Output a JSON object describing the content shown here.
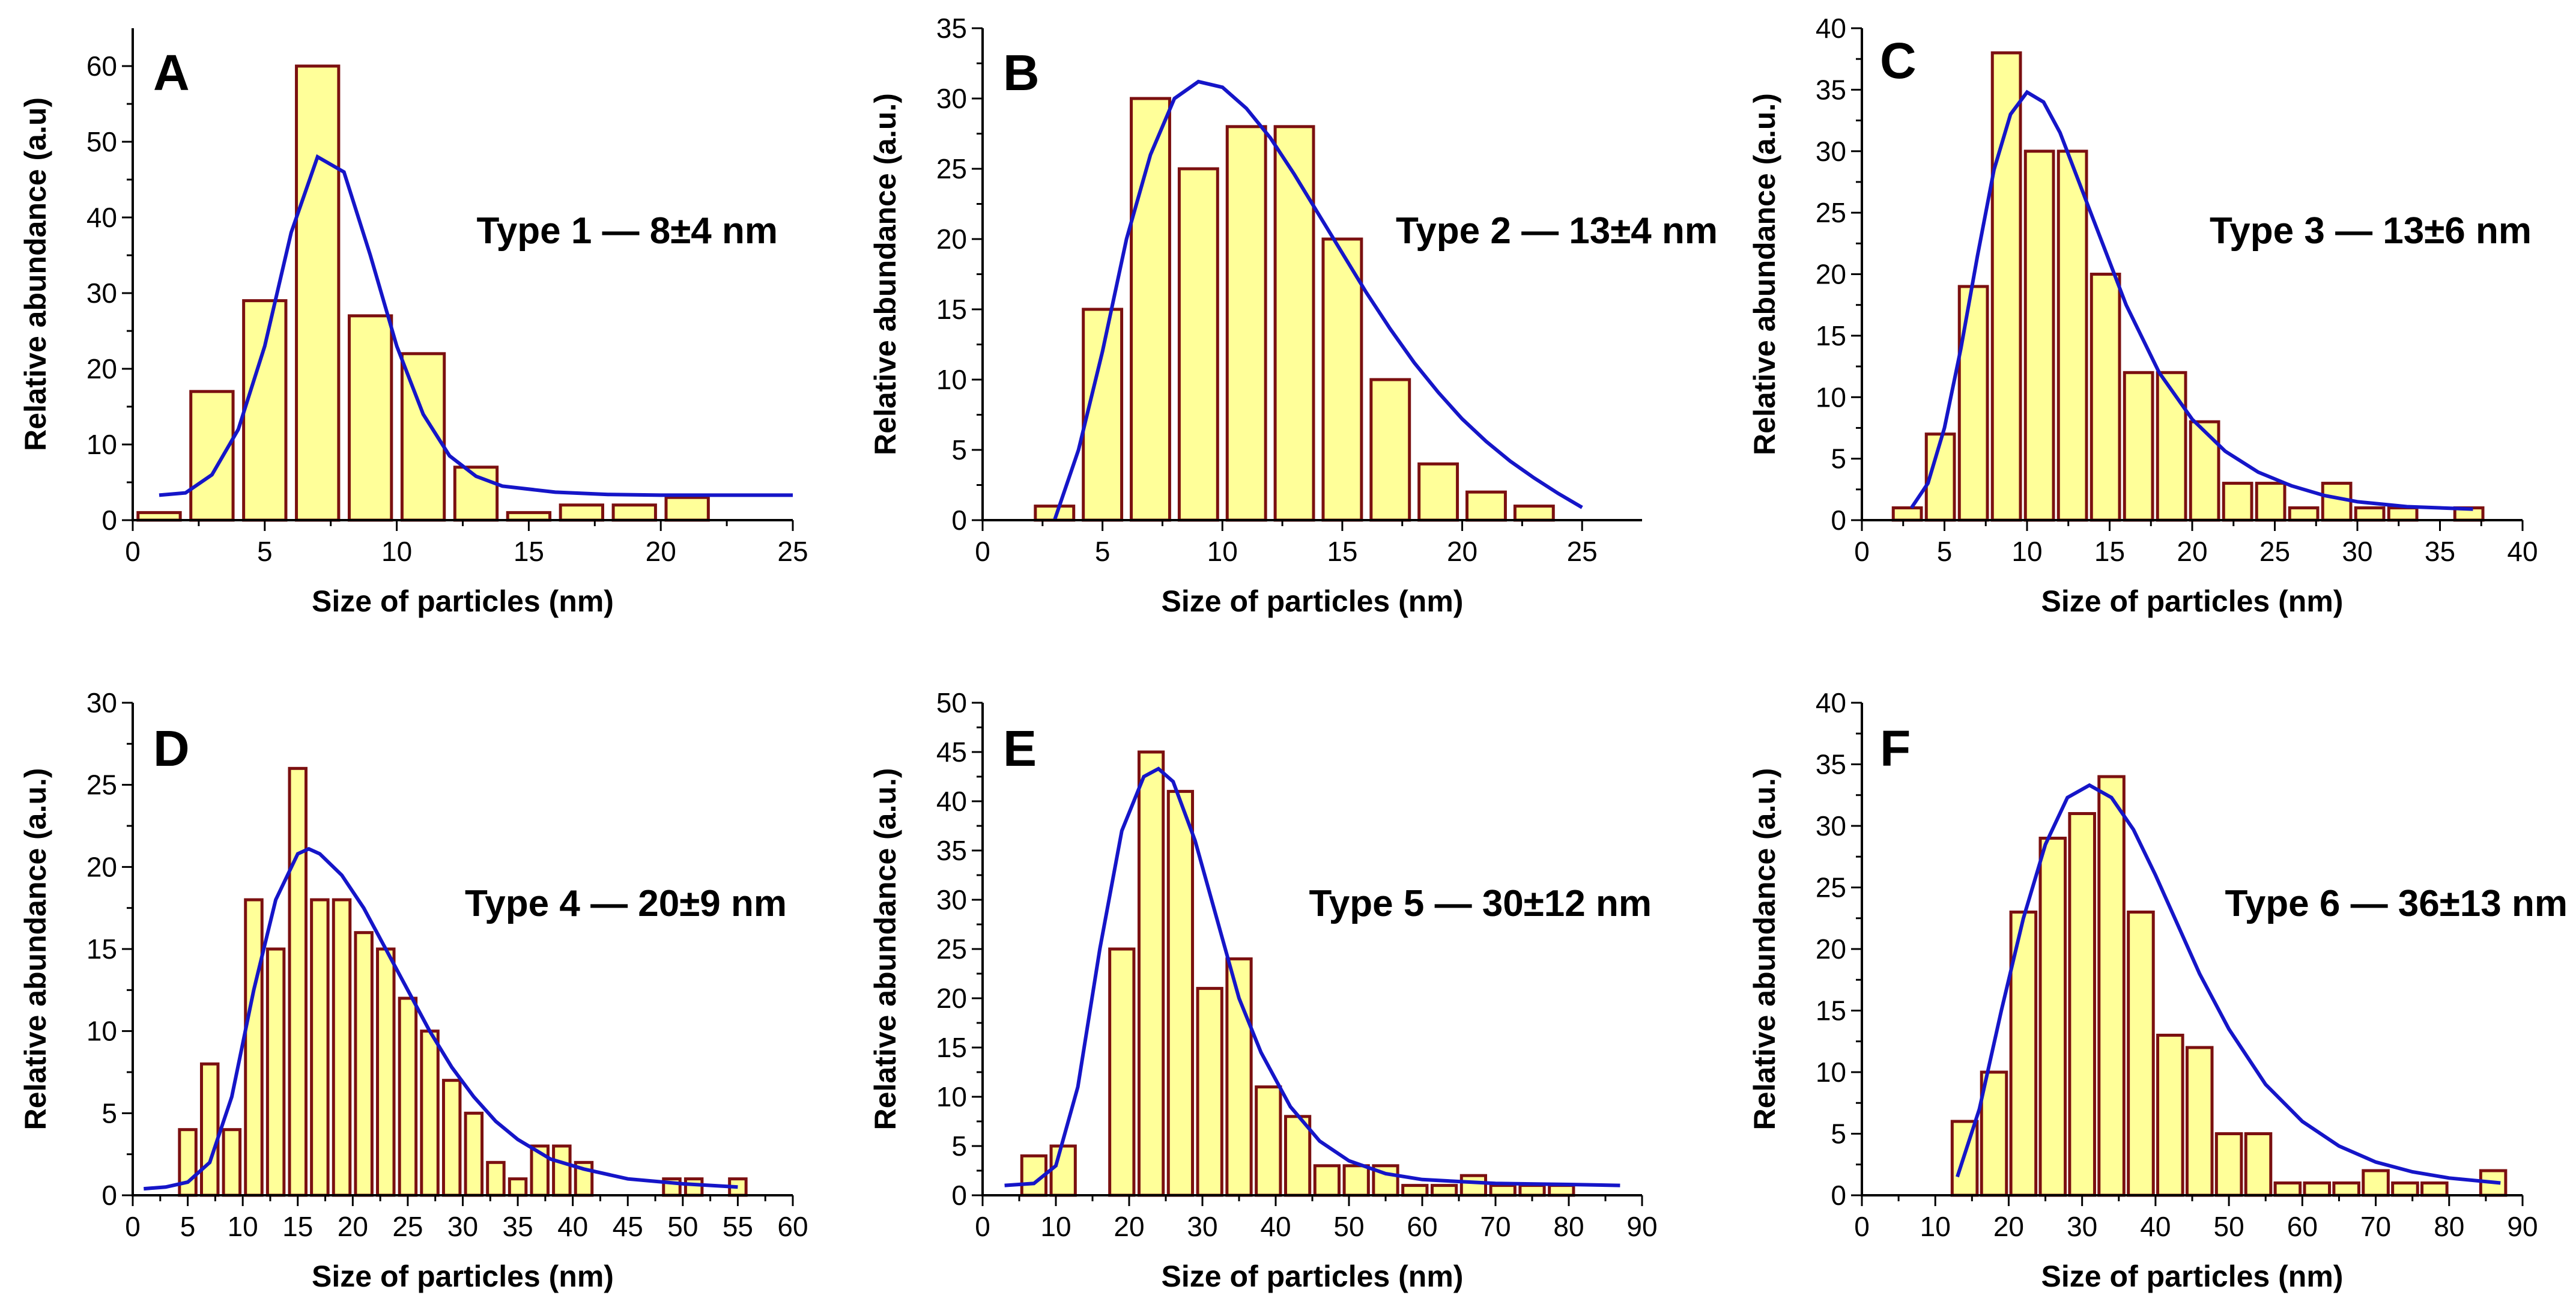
{
  "colors": {
    "bar_fill": "#FFFF99",
    "bar_stroke": "#7B1010",
    "fit_line": "#1515C8",
    "axis": "#000000"
  },
  "chart_data": [
    {
      "panel": "A",
      "type": "bar",
      "annotation": "Type 1 — 8±4 nm",
      "xlabel": "Size of particles (nm)",
      "ylabel": "Relative abundance (a.u)",
      "xlim": [
        0,
        25
      ],
      "ylim": [
        0,
        65
      ],
      "xticks": [
        0,
        5,
        10,
        15,
        20,
        25
      ],
      "yticks": [
        0,
        10,
        20,
        30,
        40,
        50,
        60
      ],
      "bin_width": 1.6,
      "x": [
        1,
        3,
        5,
        7,
        9,
        11,
        13,
        15,
        17,
        19,
        21
      ],
      "values": [
        1,
        17,
        29,
        60,
        27,
        22,
        7,
        1,
        2,
        2,
        3
      ],
      "fit": {
        "name": "fit",
        "x": [
          1,
          2,
          3,
          4,
          5,
          6,
          7,
          8,
          9,
          10,
          11,
          12,
          13,
          14,
          16,
          18,
          20,
          22,
          25
        ],
        "y": [
          3.3,
          3.6,
          6,
          12,
          23,
          38,
          48,
          46,
          35,
          23,
          14,
          8.5,
          5.8,
          4.5,
          3.7,
          3.4,
          3.3,
          3.3,
          3.3
        ]
      }
    },
    {
      "panel": "B",
      "type": "bar",
      "annotation": "Type 2 — 13±4 nm",
      "xlabel": "Size of particles (nm)",
      "ylabel": "Relative abundance (a.u.)",
      "xlim": [
        0,
        27.5
      ],
      "ylim": [
        0,
        35
      ],
      "xticks": [
        0,
        5,
        10,
        15,
        20,
        25
      ],
      "yticks": [
        0,
        5,
        10,
        15,
        20,
        25,
        30,
        35
      ],
      "bin_width": 1.6,
      "x": [
        3,
        5,
        7,
        9,
        11,
        13,
        15,
        17,
        19,
        21,
        23
      ],
      "values": [
        1,
        15,
        30,
        25,
        28,
        28,
        20,
        10,
        4,
        2,
        1
      ],
      "fit": {
        "name": "fit",
        "x": [
          3,
          4,
          5,
          6,
          7,
          8,
          9,
          10,
          11,
          12,
          13,
          14,
          15,
          16,
          17,
          18,
          19,
          20,
          21,
          22,
          23,
          24,
          25
        ],
        "y": [
          0,
          5,
          12,
          20,
          26,
          30,
          31.2,
          30.8,
          29.3,
          27.2,
          24.6,
          21.8,
          19,
          16.2,
          13.6,
          11.2,
          9.1,
          7.2,
          5.6,
          4.2,
          3,
          1.9,
          0.9
        ]
      }
    },
    {
      "panel": "C",
      "type": "bar",
      "annotation": "Type 3 — 13±6 nm",
      "xlabel": "Size of particles (nm)",
      "ylabel": "Relative abundance (a.u.)",
      "xlim": [
        0,
        40
      ],
      "ylim": [
        0,
        40
      ],
      "xticks": [
        0,
        5,
        10,
        15,
        20,
        25,
        30,
        35,
        40
      ],
      "yticks": [
        0,
        5,
        10,
        15,
        20,
        25,
        30,
        35,
        40
      ],
      "bin_width": 1.7,
      "x": [
        2.75,
        4.75,
        6.75,
        8.75,
        10.75,
        12.75,
        14.75,
        16.75,
        18.75,
        20.75,
        22.75,
        24.75,
        26.75,
        28.75,
        30.75,
        32.75,
        36.75
      ],
      "values": [
        1,
        7,
        19,
        38,
        30,
        30,
        20,
        12,
        12,
        8,
        3,
        3,
        1,
        3,
        1,
        1,
        1
      ],
      "fit": {
        "name": "fit",
        "x": [
          3,
          4,
          5,
          6,
          7,
          8,
          9,
          10,
          11,
          12,
          13,
          14,
          15,
          16,
          18,
          20,
          22,
          24,
          26,
          28,
          30,
          33,
          37
        ],
        "y": [
          1,
          3,
          7.5,
          14,
          21.5,
          28.5,
          33,
          34.8,
          34,
          31.5,
          28,
          24.5,
          21,
          17.5,
          12,
          8.2,
          5.6,
          3.9,
          2.8,
          2,
          1.5,
          1.1,
          0.9
        ]
      }
    },
    {
      "panel": "D",
      "type": "bar",
      "annotation": "Type 4 — 20±9 nm",
      "xlabel": "Size of particles (nm)",
      "ylabel": "Relative abundance (a.u.)",
      "xlim": [
        0,
        60
      ],
      "ylim": [
        0,
        30
      ],
      "xticks": [
        0,
        5,
        10,
        15,
        20,
        25,
        30,
        35,
        40,
        45,
        50,
        55,
        60
      ],
      "yticks": [
        0,
        5,
        10,
        15,
        20,
        25,
        30
      ],
      "bin_width": 1.5,
      "x": [
        5,
        7,
        9,
        11,
        13,
        15,
        17,
        19,
        21,
        23,
        25,
        27,
        29,
        31,
        33,
        35,
        37,
        39,
        41,
        49,
        51,
        55
      ],
      "values": [
        4,
        8,
        4,
        18,
        15,
        26,
        18,
        18,
        16,
        15,
        12,
        10,
        7,
        5,
        2,
        1,
        3,
        3,
        2,
        1,
        1,
        1
      ],
      "fit": {
        "name": "fit",
        "x": [
          1,
          3,
          5,
          7,
          9,
          11,
          13,
          15,
          16,
          17,
          19,
          21,
          23,
          25,
          27,
          29,
          31,
          33,
          35,
          38,
          41,
          45,
          50,
          55
        ],
        "y": [
          0.4,
          0.5,
          0.8,
          2,
          6,
          12.5,
          18,
          20.8,
          21.1,
          20.8,
          19.5,
          17.5,
          15,
          12.5,
          10,
          7.8,
          6,
          4.5,
          3.4,
          2.2,
          1.6,
          1,
          0.7,
          0.5
        ]
      }
    },
    {
      "panel": "E",
      "type": "bar",
      "annotation": "Type 5 — 30±12 nm",
      "xlabel": "Size of particles (nm)",
      "ylabel": "Relative abundance (a.u.)",
      "xlim": [
        0,
        90
      ],
      "ylim": [
        0,
        50
      ],
      "xticks": [
        0,
        10,
        20,
        30,
        40,
        50,
        60,
        70,
        80,
        90
      ],
      "yticks": [
        0,
        5,
        10,
        15,
        20,
        25,
        30,
        35,
        40,
        45,
        50
      ],
      "bin_width": 3.3,
      "x": [
        7,
        11,
        19,
        23,
        27,
        31,
        35,
        39,
        43,
        47,
        51,
        55,
        59,
        63,
        67,
        71,
        75,
        79
      ],
      "values": [
        4,
        5,
        25,
        45,
        41,
        21,
        24,
        11,
        8,
        3,
        3,
        3,
        1,
        1,
        2,
        1,
        1,
        1
      ],
      "fit": {
        "name": "fit",
        "x": [
          3,
          7,
          10,
          13,
          16,
          19,
          22,
          24,
          26,
          29,
          32,
          35,
          38,
          42,
          46,
          50,
          55,
          60,
          70,
          80,
          87
        ],
        "y": [
          1,
          1.2,
          3,
          11,
          25,
          37,
          42.5,
          43.3,
          42,
          36,
          28,
          20,
          14.5,
          9,
          5.5,
          3.5,
          2.2,
          1.6,
          1.2,
          1.1,
          1
        ]
      }
    },
    {
      "panel": "F",
      "type": "bar",
      "annotation": "Type 6 — 36±13 nm",
      "xlabel": "Size of particles (nm)",
      "ylabel": "Relative abundance (a.u.)",
      "xlim": [
        0,
        90
      ],
      "ylim": [
        0,
        40
      ],
      "xticks": [
        0,
        10,
        20,
        30,
        40,
        50,
        60,
        70,
        80,
        90
      ],
      "yticks": [
        0,
        5,
        10,
        15,
        20,
        25,
        30,
        35,
        40
      ],
      "bin_width": 3.4,
      "x": [
        14,
        18,
        22,
        26,
        30,
        34,
        38,
        42,
        46,
        50,
        54,
        58,
        62,
        66,
        70,
        74,
        78,
        86
      ],
      "values": [
        6,
        10,
        23,
        29,
        31,
        34,
        23,
        13,
        12,
        5,
        5,
        1,
        1,
        1,
        2,
        1,
        1,
        2
      ],
      "fit": {
        "name": "fit",
        "x": [
          13,
          16,
          19,
          22,
          25,
          28,
          31,
          34,
          37,
          40,
          43,
          46,
          50,
          55,
          60,
          65,
          70,
          75,
          80,
          87
        ],
        "y": [
          1.5,
          7,
          15,
          22.5,
          28.5,
          32.3,
          33.3,
          32.3,
          29.7,
          26,
          22,
          18,
          13.5,
          9,
          6,
          4,
          2.7,
          1.9,
          1.4,
          1
        ]
      }
    }
  ]
}
